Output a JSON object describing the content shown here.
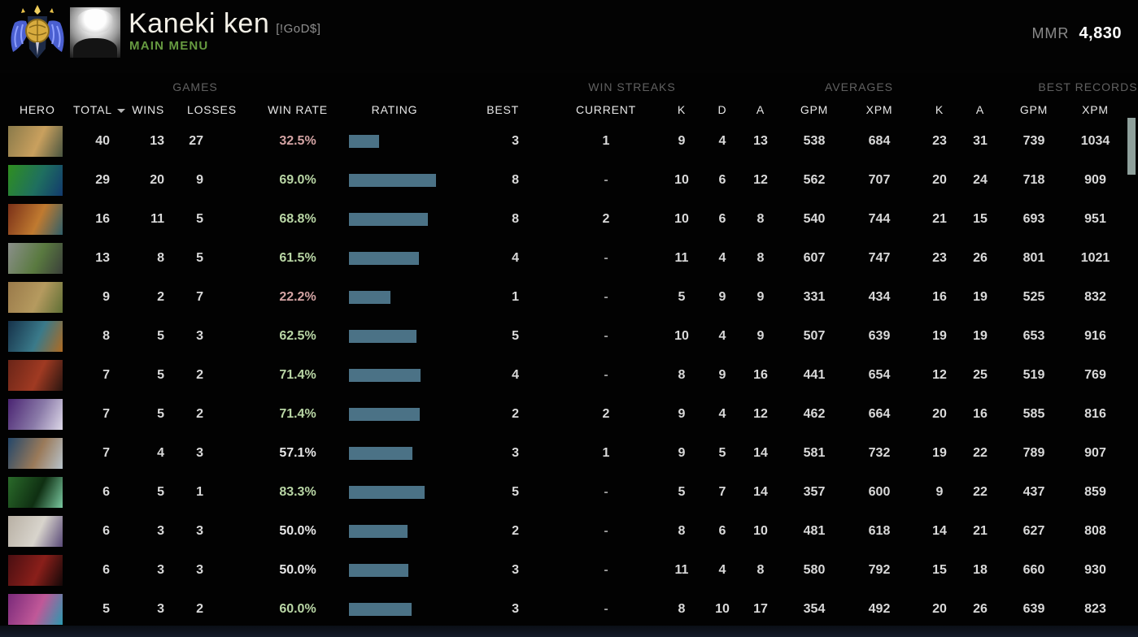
{
  "header": {
    "player_name": "Kaneki ken",
    "player_tag": "[!GoD$]",
    "nav_label": "MAIN MENU",
    "mmr_label": "MMR",
    "mmr_value": "4,830",
    "rank_medal": "immortal-medal-icon",
    "accent_green": "#669a40"
  },
  "table": {
    "group_headers": {
      "games": "GAMES",
      "win_streaks": "WIN STREAKS",
      "averages": "AVERAGES",
      "best_records": "BEST RECORDS"
    },
    "columns": {
      "hero": "HERO",
      "total": "TOTAL",
      "wins": "WINS",
      "losses": "LOSSES",
      "win_rate": "WIN RATE",
      "rating": "RATING",
      "best": "BEST",
      "current": "CURRENT",
      "k": "K",
      "d": "D",
      "a": "A",
      "gpm": "GPM",
      "xpm": "XPM",
      "k2": "K",
      "a2": "A",
      "gpm2": "GPM",
      "xpm2": "XPM"
    },
    "sort_column": "total",
    "sort_icon": "chevron-down-icon",
    "bar_color": "#4b7286",
    "win_rate_colors": {
      "positive": "#b9d6a5",
      "negative": "#d4a4a4",
      "neutral": "#e6e6e6"
    },
    "rows": [
      {
        "portrait": [
          "#8a7a4a",
          "#c9a05e",
          "#4a5540"
        ],
        "total": "40",
        "wins": "13",
        "losses": "27",
        "win_rate": "32.5%",
        "win_rate_tone": "negative",
        "rating_width": 37,
        "best": "3",
        "current": "1",
        "k": "9",
        "d": "4",
        "a": "13",
        "gpm": "538",
        "xpm": "684",
        "rk": "23",
        "ra": "31",
        "rgpm": "739",
        "rxpm": "1034"
      },
      {
        "portrait": [
          "#2f8f1f",
          "#1f6f5f",
          "#123a6e"
        ],
        "total": "29",
        "wins": "20",
        "losses": "9",
        "win_rate": "69.0%",
        "win_rate_tone": "positive",
        "rating_width": 107,
        "best": "8",
        "current": "-",
        "k": "10",
        "d": "6",
        "a": "12",
        "gpm": "562",
        "xpm": "707",
        "rk": "20",
        "ra": "24",
        "rgpm": "718",
        "rxpm": "909"
      },
      {
        "portrait": [
          "#7a3018",
          "#c07a30",
          "#2f5f6a"
        ],
        "total": "16",
        "wins": "11",
        "losses": "5",
        "win_rate": "68.8%",
        "win_rate_tone": "positive",
        "rating_width": 97,
        "best": "8",
        "current": "2",
        "k": "10",
        "d": "6",
        "a": "8",
        "gpm": "540",
        "xpm": "744",
        "rk": "21",
        "ra": "15",
        "rgpm": "693",
        "rxpm": "951"
      },
      {
        "portrait": [
          "#8a8f8a",
          "#5a7a40",
          "#3a3f3a"
        ],
        "total": "13",
        "wins": "8",
        "losses": "5",
        "win_rate": "61.5%",
        "win_rate_tone": "positive",
        "rating_width": 86,
        "best": "4",
        "current": "-",
        "k": "11",
        "d": "4",
        "a": "8",
        "gpm": "607",
        "xpm": "747",
        "rk": "23",
        "ra": "26",
        "rgpm": "801",
        "rxpm": "1021"
      },
      {
        "portrait": [
          "#9a7a4a",
          "#b59a5f",
          "#5f6f35"
        ],
        "total": "9",
        "wins": "2",
        "losses": "7",
        "win_rate": "22.2%",
        "win_rate_tone": "negative",
        "rating_width": 51,
        "best": "1",
        "current": "-",
        "k": "5",
        "d": "9",
        "a": "9",
        "gpm": "331",
        "xpm": "434",
        "rk": "16",
        "ra": "19",
        "rgpm": "525",
        "rxpm": "832"
      },
      {
        "portrait": [
          "#16324a",
          "#3a7a8a",
          "#b06a20"
        ],
        "total": "8",
        "wins": "5",
        "losses": "3",
        "win_rate": "62.5%",
        "win_rate_tone": "positive",
        "rating_width": 83,
        "best": "5",
        "current": "-",
        "k": "10",
        "d": "4",
        "a": "9",
        "gpm": "507",
        "xpm": "639",
        "rk": "19",
        "ra": "19",
        "rgpm": "653",
        "rxpm": "916"
      },
      {
        "portrait": [
          "#6a2518",
          "#a03a22",
          "#2a1510"
        ],
        "total": "7",
        "wins": "5",
        "losses": "2",
        "win_rate": "71.4%",
        "win_rate_tone": "positive",
        "rating_width": 88,
        "best": "4",
        "current": "-",
        "k": "8",
        "d": "9",
        "a": "16",
        "gpm": "441",
        "xpm": "654",
        "rk": "12",
        "ra": "25",
        "rgpm": "519",
        "rxpm": "769"
      },
      {
        "portrait": [
          "#4a2472",
          "#8a7aa8",
          "#ddd8e8"
        ],
        "total": "7",
        "wins": "5",
        "losses": "2",
        "win_rate": "71.4%",
        "win_rate_tone": "positive",
        "rating_width": 87,
        "best": "2",
        "current": "2",
        "k": "9",
        "d": "4",
        "a": "12",
        "gpm": "462",
        "xpm": "664",
        "rk": "20",
        "ra": "16",
        "rgpm": "585",
        "rxpm": "816"
      },
      {
        "portrait": [
          "#24476a",
          "#9a7a5a",
          "#b8c4cc"
        ],
        "total": "7",
        "wins": "4",
        "losses": "3",
        "win_rate": "57.1%",
        "win_rate_tone": "neutral",
        "rating_width": 78,
        "best": "3",
        "current": "1",
        "k": "9",
        "d": "5",
        "a": "14",
        "gpm": "581",
        "xpm": "732",
        "rk": "19",
        "ra": "22",
        "rgpm": "789",
        "rxpm": "907"
      },
      {
        "portrait": [
          "#2a6a2a",
          "#0f2f12",
          "#7ac8a0"
        ],
        "total": "6",
        "wins": "5",
        "losses": "1",
        "win_rate": "83.3%",
        "win_rate_tone": "positive",
        "rating_width": 93,
        "best": "5",
        "current": "-",
        "k": "5",
        "d": "7",
        "a": "14",
        "gpm": "357",
        "xpm": "600",
        "rk": "9",
        "ra": "22",
        "rgpm": "437",
        "rxpm": "859"
      },
      {
        "portrait": [
          "#b8b0a4",
          "#d8d4cc",
          "#5a4a78"
        ],
        "total": "6",
        "wins": "3",
        "losses": "3",
        "win_rate": "50.0%",
        "win_rate_tone": "neutral",
        "rating_width": 72,
        "best": "2",
        "current": "-",
        "k": "8",
        "d": "6",
        "a": "10",
        "gpm": "481",
        "xpm": "618",
        "rk": "14",
        "ra": "21",
        "rgpm": "627",
        "rxpm": "808"
      },
      {
        "portrait": [
          "#4a0f12",
          "#8a1f1a",
          "#140808"
        ],
        "total": "6",
        "wins": "3",
        "losses": "3",
        "win_rate": "50.0%",
        "win_rate_tone": "neutral",
        "rating_width": 73,
        "best": "3",
        "current": "-",
        "k": "11",
        "d": "4",
        "a": "8",
        "gpm": "580",
        "xpm": "792",
        "rk": "15",
        "ra": "18",
        "rgpm": "660",
        "rxpm": "930"
      },
      {
        "portrait": [
          "#7a2a7a",
          "#c05898",
          "#2a9ab0"
        ],
        "total": "5",
        "wins": "3",
        "losses": "2",
        "win_rate": "60.0%",
        "win_rate_tone": "positive",
        "rating_width": 77,
        "best": "3",
        "current": "-",
        "k": "8",
        "d": "10",
        "a": "17",
        "gpm": "354",
        "xpm": "492",
        "rk": "20",
        "ra": "26",
        "rgpm": "639",
        "rxpm": "823"
      }
    ]
  }
}
